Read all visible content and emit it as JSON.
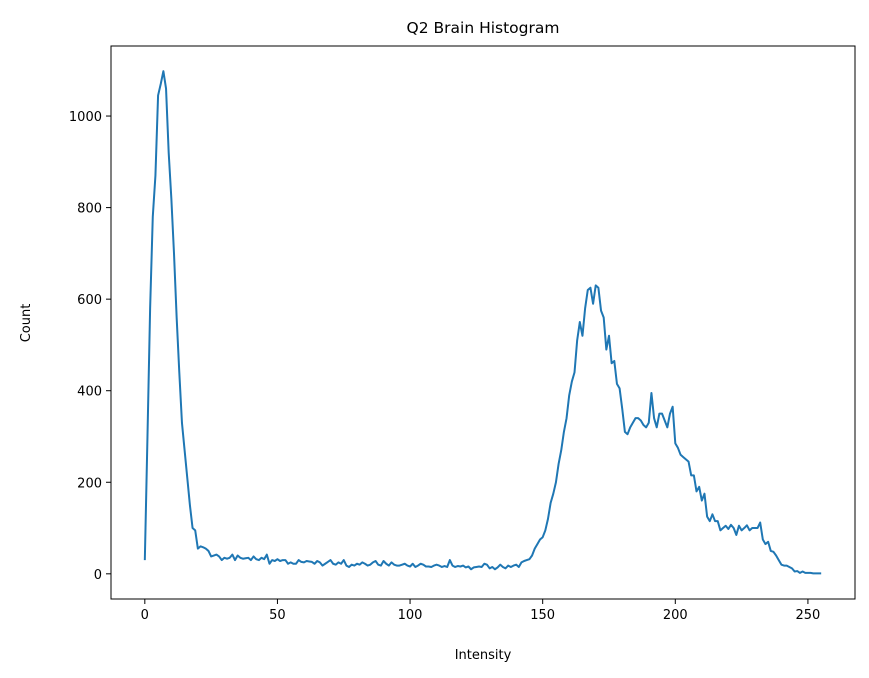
{
  "chart_data": {
    "type": "line",
    "title": "Q2 Brain Histogram",
    "x_label": "Intensity",
    "y_label": "Count",
    "x": [
      0,
      1,
      2,
      3,
      4,
      5,
      6,
      7,
      8,
      9,
      10,
      11,
      12,
      13,
      14,
      15,
      16,
      17,
      18,
      19,
      20,
      21,
      22,
      23,
      24,
      25,
      26,
      27,
      28,
      29,
      30,
      31,
      32,
      33,
      34,
      35,
      36,
      37,
      38,
      39,
      40,
      41,
      42,
      43,
      44,
      45,
      46,
      47,
      48,
      49,
      50,
      51,
      52,
      53,
      54,
      55,
      56,
      57,
      58,
      59,
      60,
      61,
      62,
      63,
      64,
      65,
      66,
      67,
      68,
      69,
      70,
      71,
      72,
      73,
      74,
      75,
      76,
      77,
      78,
      79,
      80,
      81,
      82,
      83,
      84,
      85,
      86,
      87,
      88,
      89,
      90,
      91,
      92,
      93,
      94,
      95,
      96,
      97,
      98,
      99,
      100,
      101,
      102,
      103,
      104,
      105,
      106,
      107,
      108,
      109,
      110,
      111,
      112,
      113,
      114,
      115,
      116,
      117,
      118,
      119,
      120,
      121,
      122,
      123,
      124,
      125,
      126,
      127,
      128,
      129,
      130,
      131,
      132,
      133,
      134,
      135,
      136,
      137,
      138,
      139,
      140,
      141,
      142,
      143,
      144,
      145,
      146,
      147,
      148,
      149,
      150,
      151,
      152,
      153,
      154,
      155,
      156,
      157,
      158,
      159,
      160,
      161,
      162,
      163,
      164,
      165,
      166,
      167,
      168,
      169,
      170,
      171,
      172,
      173,
      174,
      175,
      176,
      177,
      178,
      179,
      180,
      181,
      182,
      183,
      184,
      185,
      186,
      187,
      188,
      189,
      190,
      191,
      192,
      193,
      194,
      195,
      196,
      197,
      198,
      199,
      200,
      201,
      202,
      203,
      204,
      205,
      206,
      207,
      208,
      209,
      210,
      211,
      212,
      213,
      214,
      215,
      216,
      217,
      218,
      219,
      220,
      221,
      222,
      223,
      224,
      225,
      226,
      227,
      228,
      229,
      230,
      231,
      232,
      233,
      234,
      235,
      236,
      237,
      238,
      239,
      240,
      241,
      242,
      243,
      244,
      245,
      246,
      247,
      248,
      249,
      250,
      251,
      252,
      253,
      254,
      255
    ],
    "series": [
      {
        "color": "#1f77b4",
        "values": [
          30,
          300,
          580,
          780,
          870,
          1045,
          1070,
          1098,
          1060,
          920,
          820,
          700,
          560,
          440,
          330,
          270,
          210,
          150,
          100,
          95,
          55,
          60,
          58,
          55,
          50,
          38,
          40,
          42,
          38,
          30,
          35,
          33,
          35,
          42,
          30,
          40,
          35,
          33,
          34,
          35,
          30,
          38,
          32,
          30,
          35,
          32,
          42,
          22,
          30,
          28,
          32,
          28,
          30,
          30,
          22,
          25,
          22,
          22,
          30,
          26,
          25,
          28,
          27,
          26,
          22,
          28,
          25,
          18,
          22,
          26,
          30,
          22,
          20,
          25,
          22,
          30,
          18,
          15,
          20,
          18,
          22,
          20,
          25,
          22,
          18,
          20,
          25,
          28,
          20,
          18,
          28,
          22,
          18,
          25,
          20,
          18,
          18,
          20,
          22,
          18,
          16,
          22,
          15,
          18,
          22,
          20,
          16,
          16,
          15,
          18,
          20,
          18,
          15,
          17,
          15,
          30,
          18,
          15,
          17,
          16,
          18,
          14,
          16,
          10,
          14,
          15,
          16,
          15,
          22,
          20,
          12,
          15,
          10,
          14,
          20,
          15,
          12,
          18,
          15,
          18,
          20,
          15,
          25,
          28,
          30,
          32,
          40,
          55,
          65,
          75,
          80,
          95,
          120,
          155,
          175,
          200,
          240,
          270,
          310,
          340,
          390,
          420,
          440,
          510,
          550,
          520,
          580,
          620,
          625,
          590,
          630,
          625,
          575,
          560,
          490,
          520,
          460,
          465,
          415,
          405,
          360,
          310,
          305,
          320,
          330,
          340,
          340,
          335,
          325,
          320,
          330,
          395,
          340,
          320,
          350,
          350,
          335,
          320,
          350,
          365,
          285,
          275,
          260,
          255,
          250,
          245,
          215,
          215,
          180,
          190,
          160,
          175,
          125,
          115,
          130,
          115,
          115,
          95,
          100,
          105,
          98,
          107,
          100,
          85,
          105,
          95,
          100,
          106,
          95,
          100,
          100,
          100,
          112,
          75,
          65,
          70,
          50,
          48,
          40,
          30,
          20,
          18,
          18,
          15,
          12,
          5,
          6,
          2,
          5,
          2,
          2,
          2,
          1,
          1,
          1,
          1
        ]
      }
    ],
    "xlim": [
      -12.75,
      267.75
    ],
    "ylim": [
      -55,
      1153
    ],
    "xticks": [
      0,
      50,
      100,
      150,
      200,
      250
    ],
    "yticks": [
      0,
      200,
      400,
      600,
      800,
      1000
    ]
  }
}
